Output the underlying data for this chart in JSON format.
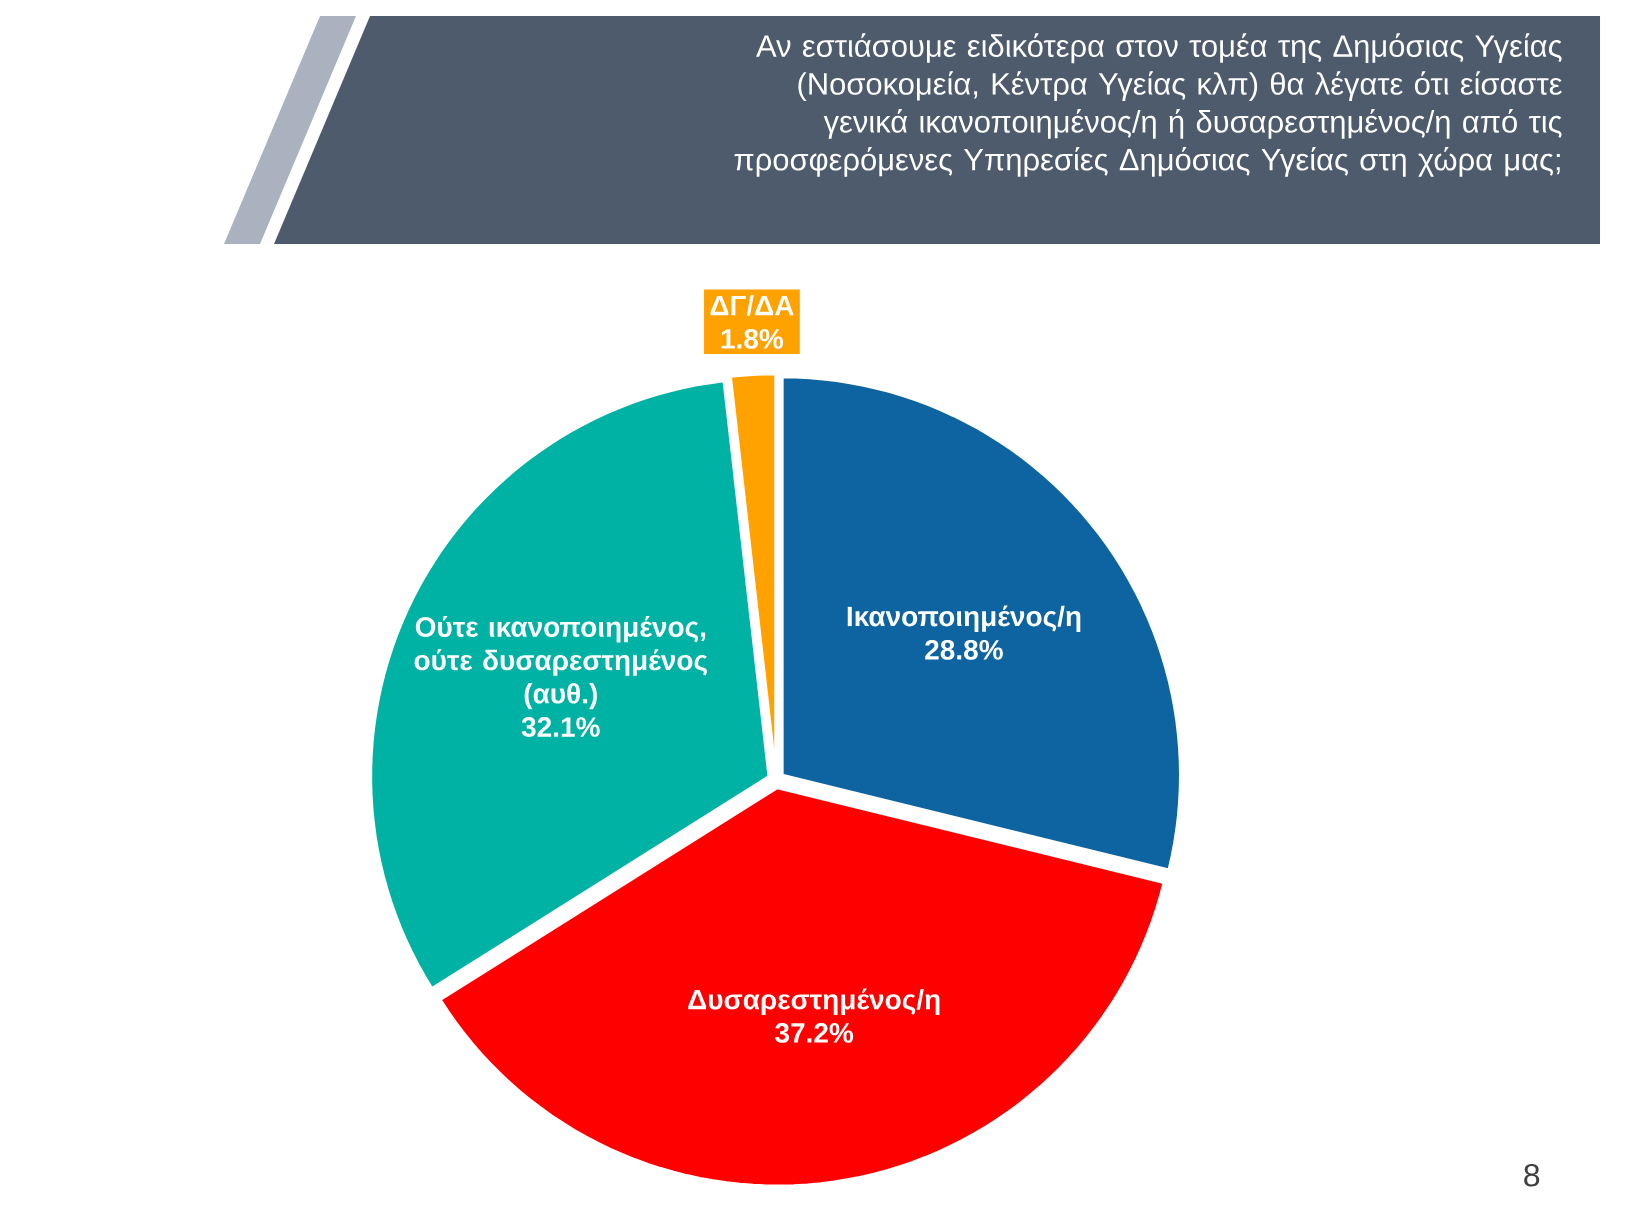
{
  "chart_data": {
    "type": "pie",
    "title": "Αν εστιάσουμε ειδικότερα στον τομέα της Δημόσιας Υγείας (Νοσοκομεία, Κέντρα Υγείας κλπ) θα λέγατε ότι είσαστε γενικά ικανοποιημένος/η ή δυσαρεστημένος/η από τις προσφερόμενες Υπηρεσίες Δημόσιας Υγείας στη χώρα μας;",
    "categories": [
      "Ικανοποιημένος/η",
      "Δυσαρεστημένος/η",
      "Ούτε ικανοποιημένος, ούτε δυσαρεστημένος (αυθ.)",
      "ΔΓ/ΔΑ"
    ],
    "values": [
      28.8,
      37.2,
      32.1,
      1.8
    ],
    "value_labels": [
      "28.8%",
      "37.2%",
      "32.1%",
      "1.8%"
    ],
    "colors": [
      "#0e64a0",
      "#ff0000",
      "#00b2a4",
      "#ffa200"
    ],
    "annotations": [
      "8"
    ]
  }
}
